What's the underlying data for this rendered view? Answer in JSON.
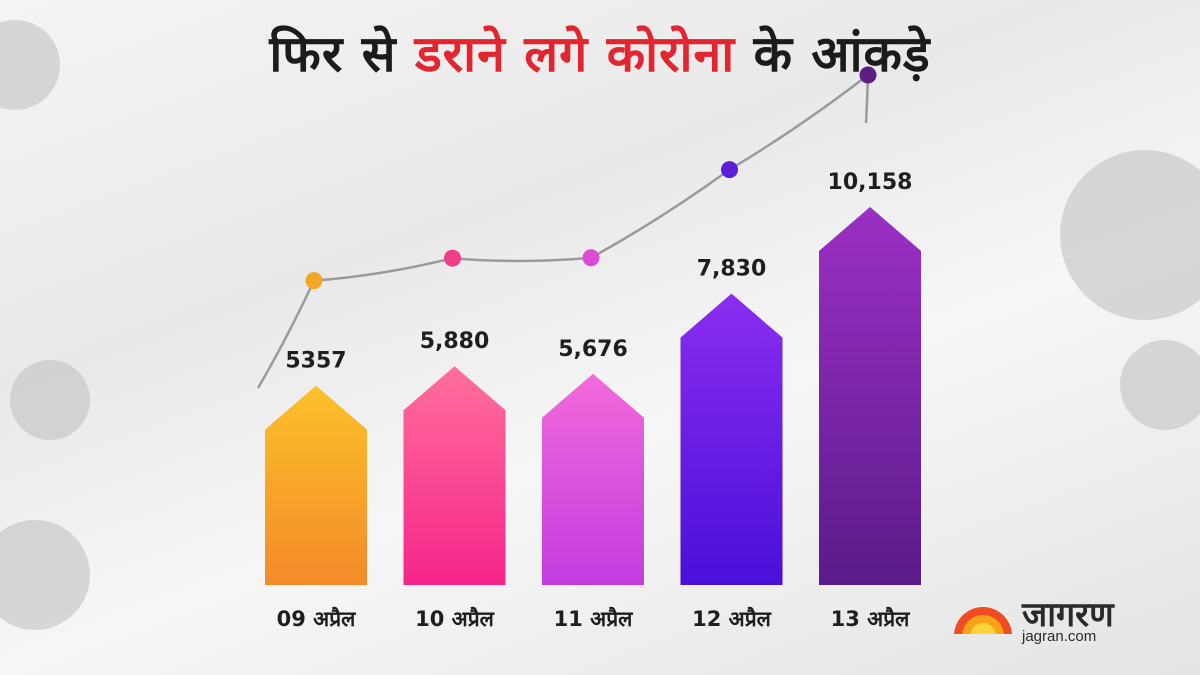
{
  "title": {
    "part1": "फिर से",
    "part2": "डराने लगे कोरोना",
    "part3": "के आंकड़े"
  },
  "colors": {
    "title_dark": "#1b1b1b",
    "title_red": "#e2262f",
    "trend_line": "#9a9a9a"
  },
  "chart_data": {
    "type": "bar",
    "categories": [
      "09 अप्रैल",
      "10 अप्रैल",
      "11 अप्रैल",
      "12 अप्रैल",
      "13 अप्रैल"
    ],
    "values": [
      5357,
      5880,
      5676,
      7830,
      10158
    ],
    "value_labels": [
      "5357",
      "5,880",
      "5,676",
      "7,830",
      "10,158"
    ],
    "bar_colors": [
      [
        "#fcc12a",
        "#f48a2a"
      ],
      [
        "#ff6f9c",
        "#f5258a"
      ],
      [
        "#f26bd9",
        "#c43be0"
      ],
      [
        "#8a2df0",
        "#4a0fd9"
      ],
      [
        "#9b2fc4",
        "#5a1b8a"
      ]
    ],
    "dot_colors": [
      "#f5a623",
      "#ee3e8a",
      "#dd4ad6",
      "#5b1fd8",
      "#5c1e86"
    ],
    "grid": false,
    "legend": "none"
  },
  "logo": {
    "word": "जागरण",
    "url": "jagran.com"
  }
}
